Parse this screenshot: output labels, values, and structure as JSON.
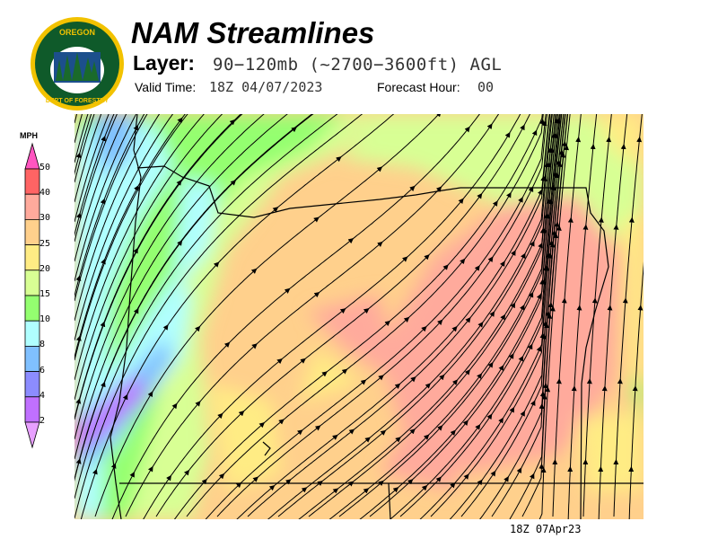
{
  "header": {
    "title": "NAM Streamlines",
    "layer_label": "Layer:",
    "layer_value": "90−120mb (~2700−3600ft) AGL",
    "valid_label": "Valid Time:",
    "valid_value": "18Z 04/07/2023",
    "forecast_label": "Forecast Hour:",
    "forecast_value": "00"
  },
  "logo": {
    "top_text": "OREGON",
    "bottom_text": "DEPARTMENT OF FORESTRY"
  },
  "legend": {
    "unit": "MPH",
    "levels": [
      "50",
      "40",
      "30",
      "25",
      "20",
      "15",
      "10",
      "8",
      "6",
      "4",
      "2"
    ],
    "colors": {
      "over_50": "#ff55c0",
      "40_50": "#ff6464",
      "30_40": "#ffaa9c",
      "25_30": "#ffd08c",
      "20_25": "#ffec84",
      "15_20": "#d8ff94",
      "10_15": "#94ff70",
      "8_10": "#b0ffff",
      "6_8": "#80c0ff",
      "4_6": "#8c8cff",
      "2_4": "#c070ff",
      "under_2": "#e8a0ff"
    }
  },
  "footer": {
    "timestamp": "18Z 07Apr23"
  }
}
